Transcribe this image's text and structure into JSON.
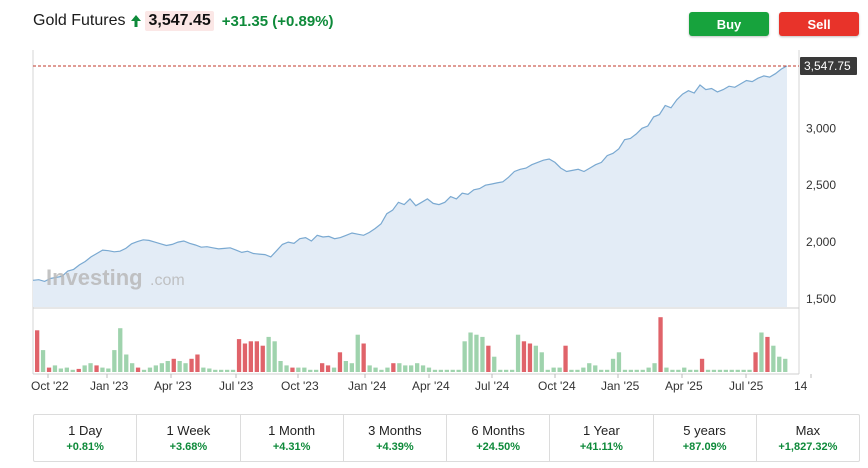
{
  "header": {
    "title": "Gold Futures",
    "price": "3,547.45",
    "change": "+31.35 (+0.89%)",
    "arrow_icon": "up-arrow-icon",
    "arrow_color": "#0e8a3a"
  },
  "actions": {
    "buy_label": "Buy",
    "sell_label": "Sell",
    "buy_color": "#17a33d",
    "sell_color": "#e8332a"
  },
  "watermark": {
    "brand": "Investing",
    "suffix": ".com"
  },
  "chart_data": {
    "type": "area",
    "last_price_label": "3,547.75",
    "last_price": 3547.75,
    "y_ticks": [
      {
        "label": "3,000",
        "value": 3000
      },
      {
        "label": "2,500",
        "value": 2500
      },
      {
        "label": "2,000",
        "value": 2000
      },
      {
        "label": "1,500",
        "value": 1500
      }
    ],
    "ylim": [
      1430,
      3600
    ],
    "x_ticks": [
      "Oct '22",
      "Jan '23",
      "Apr '23",
      "Jul '23",
      "Oct '23",
      "Jan '24",
      "Apr '24",
      "Jul '24",
      "Oct '24",
      "Jan '25",
      "Apr '25",
      "Jul '25",
      "14"
    ],
    "series": [
      {
        "values": [
          1665,
          1670,
          1655,
          1680,
          1690,
          1700,
          1745,
          1760,
          1800,
          1830,
          1870,
          1900,
          1930,
          1925,
          1915,
          1920,
          1945,
          1985,
          2005,
          2020,
          2015,
          2000,
          1985,
          1970,
          1980,
          2000,
          2010,
          1990,
          1975,
          1955,
          1960,
          1950,
          1940,
          1945,
          1950,
          1930,
          1910,
          1920,
          1900,
          1895,
          1890,
          1870,
          1925,
          1980,
          2000,
          1990,
          2030,
          2040,
          2010,
          2060,
          2045,
          2050,
          2030,
          2040,
          2060,
          2080,
          2070,
          2060,
          2085,
          2120,
          2160,
          2250,
          2280,
          2350,
          2330,
          2380,
          2320,
          2350,
          2380,
          2340,
          2330,
          2350,
          2400,
          2380,
          2430,
          2420,
          2460,
          2470,
          2500,
          2510,
          2520,
          2530,
          2570,
          2620,
          2640,
          2650,
          2680,
          2700,
          2720,
          2730,
          2700,
          2650,
          2620,
          2630,
          2640,
          2620,
          2650,
          2680,
          2700,
          2760,
          2780,
          2820,
          2900,
          2910,
          2950,
          3000,
          3020,
          3100,
          3120,
          3200,
          3180,
          3250,
          3300,
          3330,
          3310,
          3380,
          3340,
          3350,
          3320,
          3340,
          3370,
          3360,
          3390,
          3420,
          3410,
          3440,
          3460,
          3450,
          3480,
          3520,
          3547.75
        ]
      }
    ],
    "volume": [
      {
        "v": 0.95,
        "dir": "down"
      },
      {
        "v": 0.5,
        "dir": "up"
      },
      {
        "v": 0.1,
        "dir": "down"
      },
      {
        "v": 0.15,
        "dir": "up"
      },
      {
        "v": 0.08,
        "dir": "up"
      },
      {
        "v": 0.1,
        "dir": "up"
      },
      {
        "v": 0.05,
        "dir": "up"
      },
      {
        "v": 0.07,
        "dir": "down"
      },
      {
        "v": 0.15,
        "dir": "up"
      },
      {
        "v": 0.2,
        "dir": "up"
      },
      {
        "v": 0.15,
        "dir": "down"
      },
      {
        "v": 0.1,
        "dir": "up"
      },
      {
        "v": 0.08,
        "dir": "up"
      },
      {
        "v": 0.5,
        "dir": "up"
      },
      {
        "v": 1.0,
        "dir": "up"
      },
      {
        "v": 0.4,
        "dir": "up"
      },
      {
        "v": 0.2,
        "dir": "up"
      },
      {
        "v": 0.1,
        "dir": "down"
      },
      {
        "v": 0.05,
        "dir": "up"
      },
      {
        "v": 0.1,
        "dir": "up"
      },
      {
        "v": 0.15,
        "dir": "up"
      },
      {
        "v": 0.2,
        "dir": "up"
      },
      {
        "v": 0.25,
        "dir": "up"
      },
      {
        "v": 0.3,
        "dir": "down"
      },
      {
        "v": 0.25,
        "dir": "up"
      },
      {
        "v": 0.2,
        "dir": "up"
      },
      {
        "v": 0.3,
        "dir": "down"
      },
      {
        "v": 0.4,
        "dir": "down"
      },
      {
        "v": 0.1,
        "dir": "up"
      },
      {
        "v": 0.08,
        "dir": "up"
      },
      {
        "v": 0.05,
        "dir": "up"
      },
      {
        "v": 0.05,
        "dir": "up"
      },
      {
        "v": 0.05,
        "dir": "up"
      },
      {
        "v": 0.05,
        "dir": "up"
      },
      {
        "v": 0.75,
        "dir": "down"
      },
      {
        "v": 0.65,
        "dir": "down"
      },
      {
        "v": 0.7,
        "dir": "down"
      },
      {
        "v": 0.7,
        "dir": "down"
      },
      {
        "v": 0.6,
        "dir": "down"
      },
      {
        "v": 0.8,
        "dir": "up"
      },
      {
        "v": 0.7,
        "dir": "up"
      },
      {
        "v": 0.25,
        "dir": "up"
      },
      {
        "v": 0.15,
        "dir": "up"
      },
      {
        "v": 0.1,
        "dir": "down"
      },
      {
        "v": 0.1,
        "dir": "up"
      },
      {
        "v": 0.1,
        "dir": "up"
      },
      {
        "v": 0.05,
        "dir": "up"
      },
      {
        "v": 0.05,
        "dir": "up"
      },
      {
        "v": 0.2,
        "dir": "down"
      },
      {
        "v": 0.15,
        "dir": "down"
      },
      {
        "v": 0.1,
        "dir": "up"
      },
      {
        "v": 0.45,
        "dir": "down"
      },
      {
        "v": 0.25,
        "dir": "up"
      },
      {
        "v": 0.2,
        "dir": "up"
      },
      {
        "v": 0.85,
        "dir": "up"
      },
      {
        "v": 0.65,
        "dir": "down"
      },
      {
        "v": 0.15,
        "dir": "up"
      },
      {
        "v": 0.1,
        "dir": "up"
      },
      {
        "v": 0.05,
        "dir": "up"
      },
      {
        "v": 0.1,
        "dir": "up"
      },
      {
        "v": 0.2,
        "dir": "down"
      },
      {
        "v": 0.2,
        "dir": "up"
      },
      {
        "v": 0.15,
        "dir": "up"
      },
      {
        "v": 0.15,
        "dir": "up"
      },
      {
        "v": 0.2,
        "dir": "up"
      },
      {
        "v": 0.15,
        "dir": "up"
      },
      {
        "v": 0.1,
        "dir": "up"
      },
      {
        "v": 0.05,
        "dir": "up"
      },
      {
        "v": 0.05,
        "dir": "up"
      },
      {
        "v": 0.05,
        "dir": "up"
      },
      {
        "v": 0.05,
        "dir": "up"
      },
      {
        "v": 0.05,
        "dir": "up"
      },
      {
        "v": 0.7,
        "dir": "up"
      },
      {
        "v": 0.9,
        "dir": "up"
      },
      {
        "v": 0.85,
        "dir": "up"
      },
      {
        "v": 0.8,
        "dir": "up"
      },
      {
        "v": 0.6,
        "dir": "down"
      },
      {
        "v": 0.35,
        "dir": "up"
      },
      {
        "v": 0.05,
        "dir": "up"
      },
      {
        "v": 0.05,
        "dir": "up"
      },
      {
        "v": 0.05,
        "dir": "up"
      },
      {
        "v": 0.85,
        "dir": "up"
      },
      {
        "v": 0.7,
        "dir": "down"
      },
      {
        "v": 0.65,
        "dir": "down"
      },
      {
        "v": 0.6,
        "dir": "up"
      },
      {
        "v": 0.45,
        "dir": "up"
      },
      {
        "v": 0.05,
        "dir": "up"
      },
      {
        "v": 0.1,
        "dir": "up"
      },
      {
        "v": 0.1,
        "dir": "up"
      },
      {
        "v": 0.6,
        "dir": "down"
      },
      {
        "v": 0.05,
        "dir": "up"
      },
      {
        "v": 0.05,
        "dir": "up"
      },
      {
        "v": 0.1,
        "dir": "up"
      },
      {
        "v": 0.2,
        "dir": "up"
      },
      {
        "v": 0.15,
        "dir": "up"
      },
      {
        "v": 0.05,
        "dir": "up"
      },
      {
        "v": 0.05,
        "dir": "up"
      },
      {
        "v": 0.3,
        "dir": "up"
      },
      {
        "v": 0.45,
        "dir": "up"
      },
      {
        "v": 0.05,
        "dir": "up"
      },
      {
        "v": 0.05,
        "dir": "up"
      },
      {
        "v": 0.05,
        "dir": "up"
      },
      {
        "v": 0.05,
        "dir": "up"
      },
      {
        "v": 0.1,
        "dir": "up"
      },
      {
        "v": 0.2,
        "dir": "up"
      },
      {
        "v": 1.25,
        "dir": "down"
      },
      {
        "v": 0.1,
        "dir": "up"
      },
      {
        "v": 0.05,
        "dir": "up"
      },
      {
        "v": 0.05,
        "dir": "up"
      },
      {
        "v": 0.1,
        "dir": "up"
      },
      {
        "v": 0.05,
        "dir": "up"
      },
      {
        "v": 0.05,
        "dir": "up"
      },
      {
        "v": 0.3,
        "dir": "down"
      },
      {
        "v": 0.05,
        "dir": "up"
      },
      {
        "v": 0.05,
        "dir": "up"
      },
      {
        "v": 0.05,
        "dir": "up"
      },
      {
        "v": 0.05,
        "dir": "up"
      },
      {
        "v": 0.05,
        "dir": "up"
      },
      {
        "v": 0.05,
        "dir": "up"
      },
      {
        "v": 0.05,
        "dir": "up"
      },
      {
        "v": 0.05,
        "dir": "up"
      },
      {
        "v": 0.45,
        "dir": "down"
      },
      {
        "v": 0.9,
        "dir": "up"
      },
      {
        "v": 0.8,
        "dir": "down"
      },
      {
        "v": 0.6,
        "dir": "up"
      },
      {
        "v": 0.35,
        "dir": "up"
      },
      {
        "v": 0.3,
        "dir": "up"
      }
    ],
    "colors": {
      "line": "#7aa9d1",
      "fill": "#e3ecf6",
      "up": "#9fd3ad",
      "down": "#e0636a",
      "last_line": "#c0392b"
    }
  },
  "ranges": [
    {
      "label": "1 Day",
      "change": "+0.81%"
    },
    {
      "label": "1 Week",
      "change": "+3.68%"
    },
    {
      "label": "1 Month",
      "change": "+4.31%"
    },
    {
      "label": "3 Months",
      "change": "+4.39%"
    },
    {
      "label": "6 Months",
      "change": "+24.50%"
    },
    {
      "label": "1 Year",
      "change": "+41.11%"
    },
    {
      "label": "5 years",
      "change": "+87.09%"
    },
    {
      "label": "Max",
      "change": "+1,827.32%"
    }
  ]
}
